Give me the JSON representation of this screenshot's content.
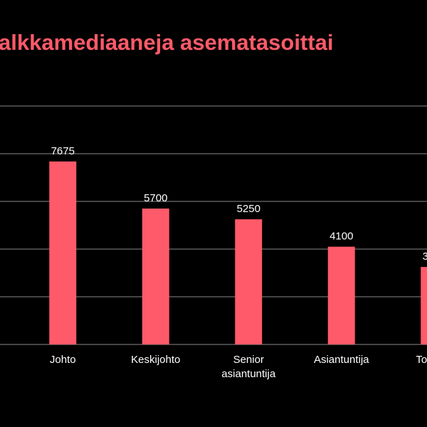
{
  "chart_data": {
    "type": "bar",
    "title": "alkkamediaaneja asematasoittai",
    "categories": [
      "Johto",
      "Keskijohto",
      "Senior asiantuntija",
      "Asiantuntija",
      "Toimihe"
    ],
    "values": [
      7675,
      5700,
      5250,
      4100,
      3250
    ],
    "color": "#ff5a69",
    "ylim": [
      0,
      10000
    ],
    "yticks": [
      0,
      2000,
      4000,
      6000,
      8000,
      10000
    ],
    "grid": true
  }
}
